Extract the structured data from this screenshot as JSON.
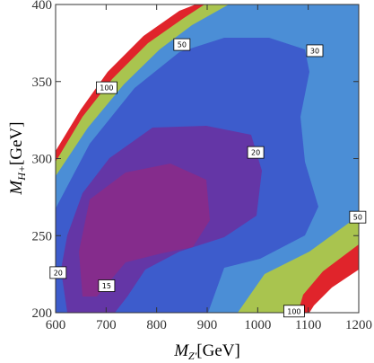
{
  "chart_data": {
    "type": "contour",
    "x_label": {
      "symbol": "M",
      "subscript": "Z'",
      "unit": "[GeV]"
    },
    "y_label": {
      "symbol": "M",
      "subscript": "H+",
      "unit": "[GeV]"
    },
    "xlim": [
      600,
      1200
    ],
    "xticks": [
      600,
      700,
      800,
      900,
      1000,
      1100,
      1200
    ],
    "ylim": [
      200,
      400
    ],
    "yticks": [
      200,
      250,
      300,
      350,
      400
    ],
    "contour_labels": [
      {
        "level": 15,
        "x": 701,
        "y": 217.5
      },
      {
        "level": 20,
        "x": 605,
        "y": 226
      },
      {
        "level": 20,
        "x": 996,
        "y": 304
      },
      {
        "level": 30,
        "x": 1113,
        "y": 370
      },
      {
        "level": 50,
        "x": 850,
        "y": 374
      },
      {
        "level": 50,
        "x": 1198,
        "y": 262
      },
      {
        "level": 100,
        "x": 701,
        "y": 346
      },
      {
        "level": 100,
        "x": 1072,
        "y": 201
      }
    ]
  }
}
